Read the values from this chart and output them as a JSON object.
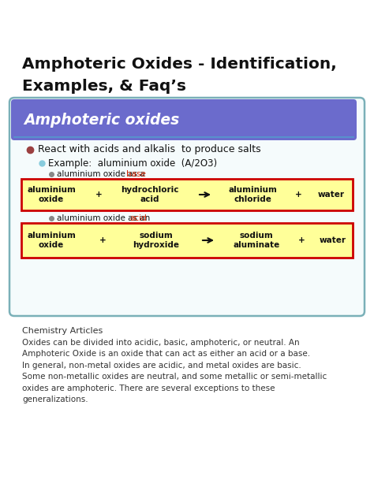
{
  "title_line1": "Amphoteric Oxides - Identification,",
  "title_line2": "Examples, & Faq’s",
  "box_header": "Amphoteric oxides",
  "box_header_bg": "#6b6bcc",
  "box_header_color": "#ffffff",
  "box_border": "#7ab0b8",
  "box_bg": "#f5fbfc",
  "bullet1": "React with acids and alkalis  to produce salts",
  "bullet2": "Example:  aluminium oxide  (A/2O3)",
  "bullet3a_prefix": "aluminium oxide as a ",
  "bullet3a_colored": "base",
  "bullet3a_color": "#cc2200",
  "bullet3b_prefix": "aluminium oxide as an ",
  "bullet3b_colored": "acid",
  "bullet3b_color": "#cc2200",
  "reaction1": [
    "aluminium\noxide",
    "+",
    "hydrochloric\nacid",
    "⟶",
    "aluminium\nchloride",
    "+",
    "water"
  ],
  "reaction2": [
    "aluminium\noxide",
    "+",
    "sodium\nhydroxide",
    "⟶",
    "sodium\naluminate",
    "+",
    "water"
  ],
  "reaction_bg": "#ffff99",
  "reaction_border": "#cc0000",
  "footer_title": "Chemistry Articles",
  "footer_text": "Oxides can be divided into acidic, basic, amphoteric, or neutral. An Amphoteric Oxide is an oxide that can act as either an acid or a base. In general, non-metal oxides are acidic, and metal oxides are basic. Some non-metallic oxides are neutral, and some metallic or semi-metallic oxides are amphoteric. There are several exceptions to these generalizations.",
  "bg_color": "#ffffff"
}
